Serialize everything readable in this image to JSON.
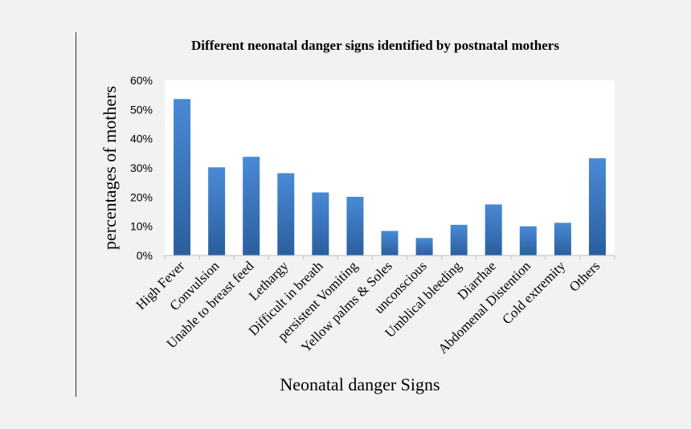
{
  "chart_data": {
    "type": "bar",
    "title": "Different neonatal danger signs identified by postnatal mothers",
    "xlabel": "Neonatal danger Signs",
    "ylabel": "percentages of mothers",
    "categories": [
      "High Fever",
      "Convulsion",
      "Unable to breast feed",
      "Lethargy",
      "Difficult in breath",
      "persistent Vomiting",
      "Yellow palms & Soles",
      "unconscious",
      "Umblical bleeding",
      "Diarrhae",
      "Abdomenal Distention",
      "Cold  extremity",
      "Others"
    ],
    "values": [
      53.6,
      30.2,
      33.8,
      28.2,
      21.6,
      20.1,
      8.4,
      6.0,
      10.5,
      17.5,
      10.0,
      11.2,
      33.3
    ],
    "ylim": [
      0,
      60
    ],
    "yticks": [
      0,
      10,
      20,
      30,
      40,
      50,
      60
    ],
    "ytick_labels": [
      "0%",
      "10%",
      "20%",
      "30%",
      "40%",
      "50%",
      "60%"
    ],
    "grid": false,
    "bar_color_top": "#4a8ad6",
    "bar_color_bottom": "#2a5f9e",
    "plot_background": "#ffffff",
    "page_background": "#f2f2f2"
  }
}
